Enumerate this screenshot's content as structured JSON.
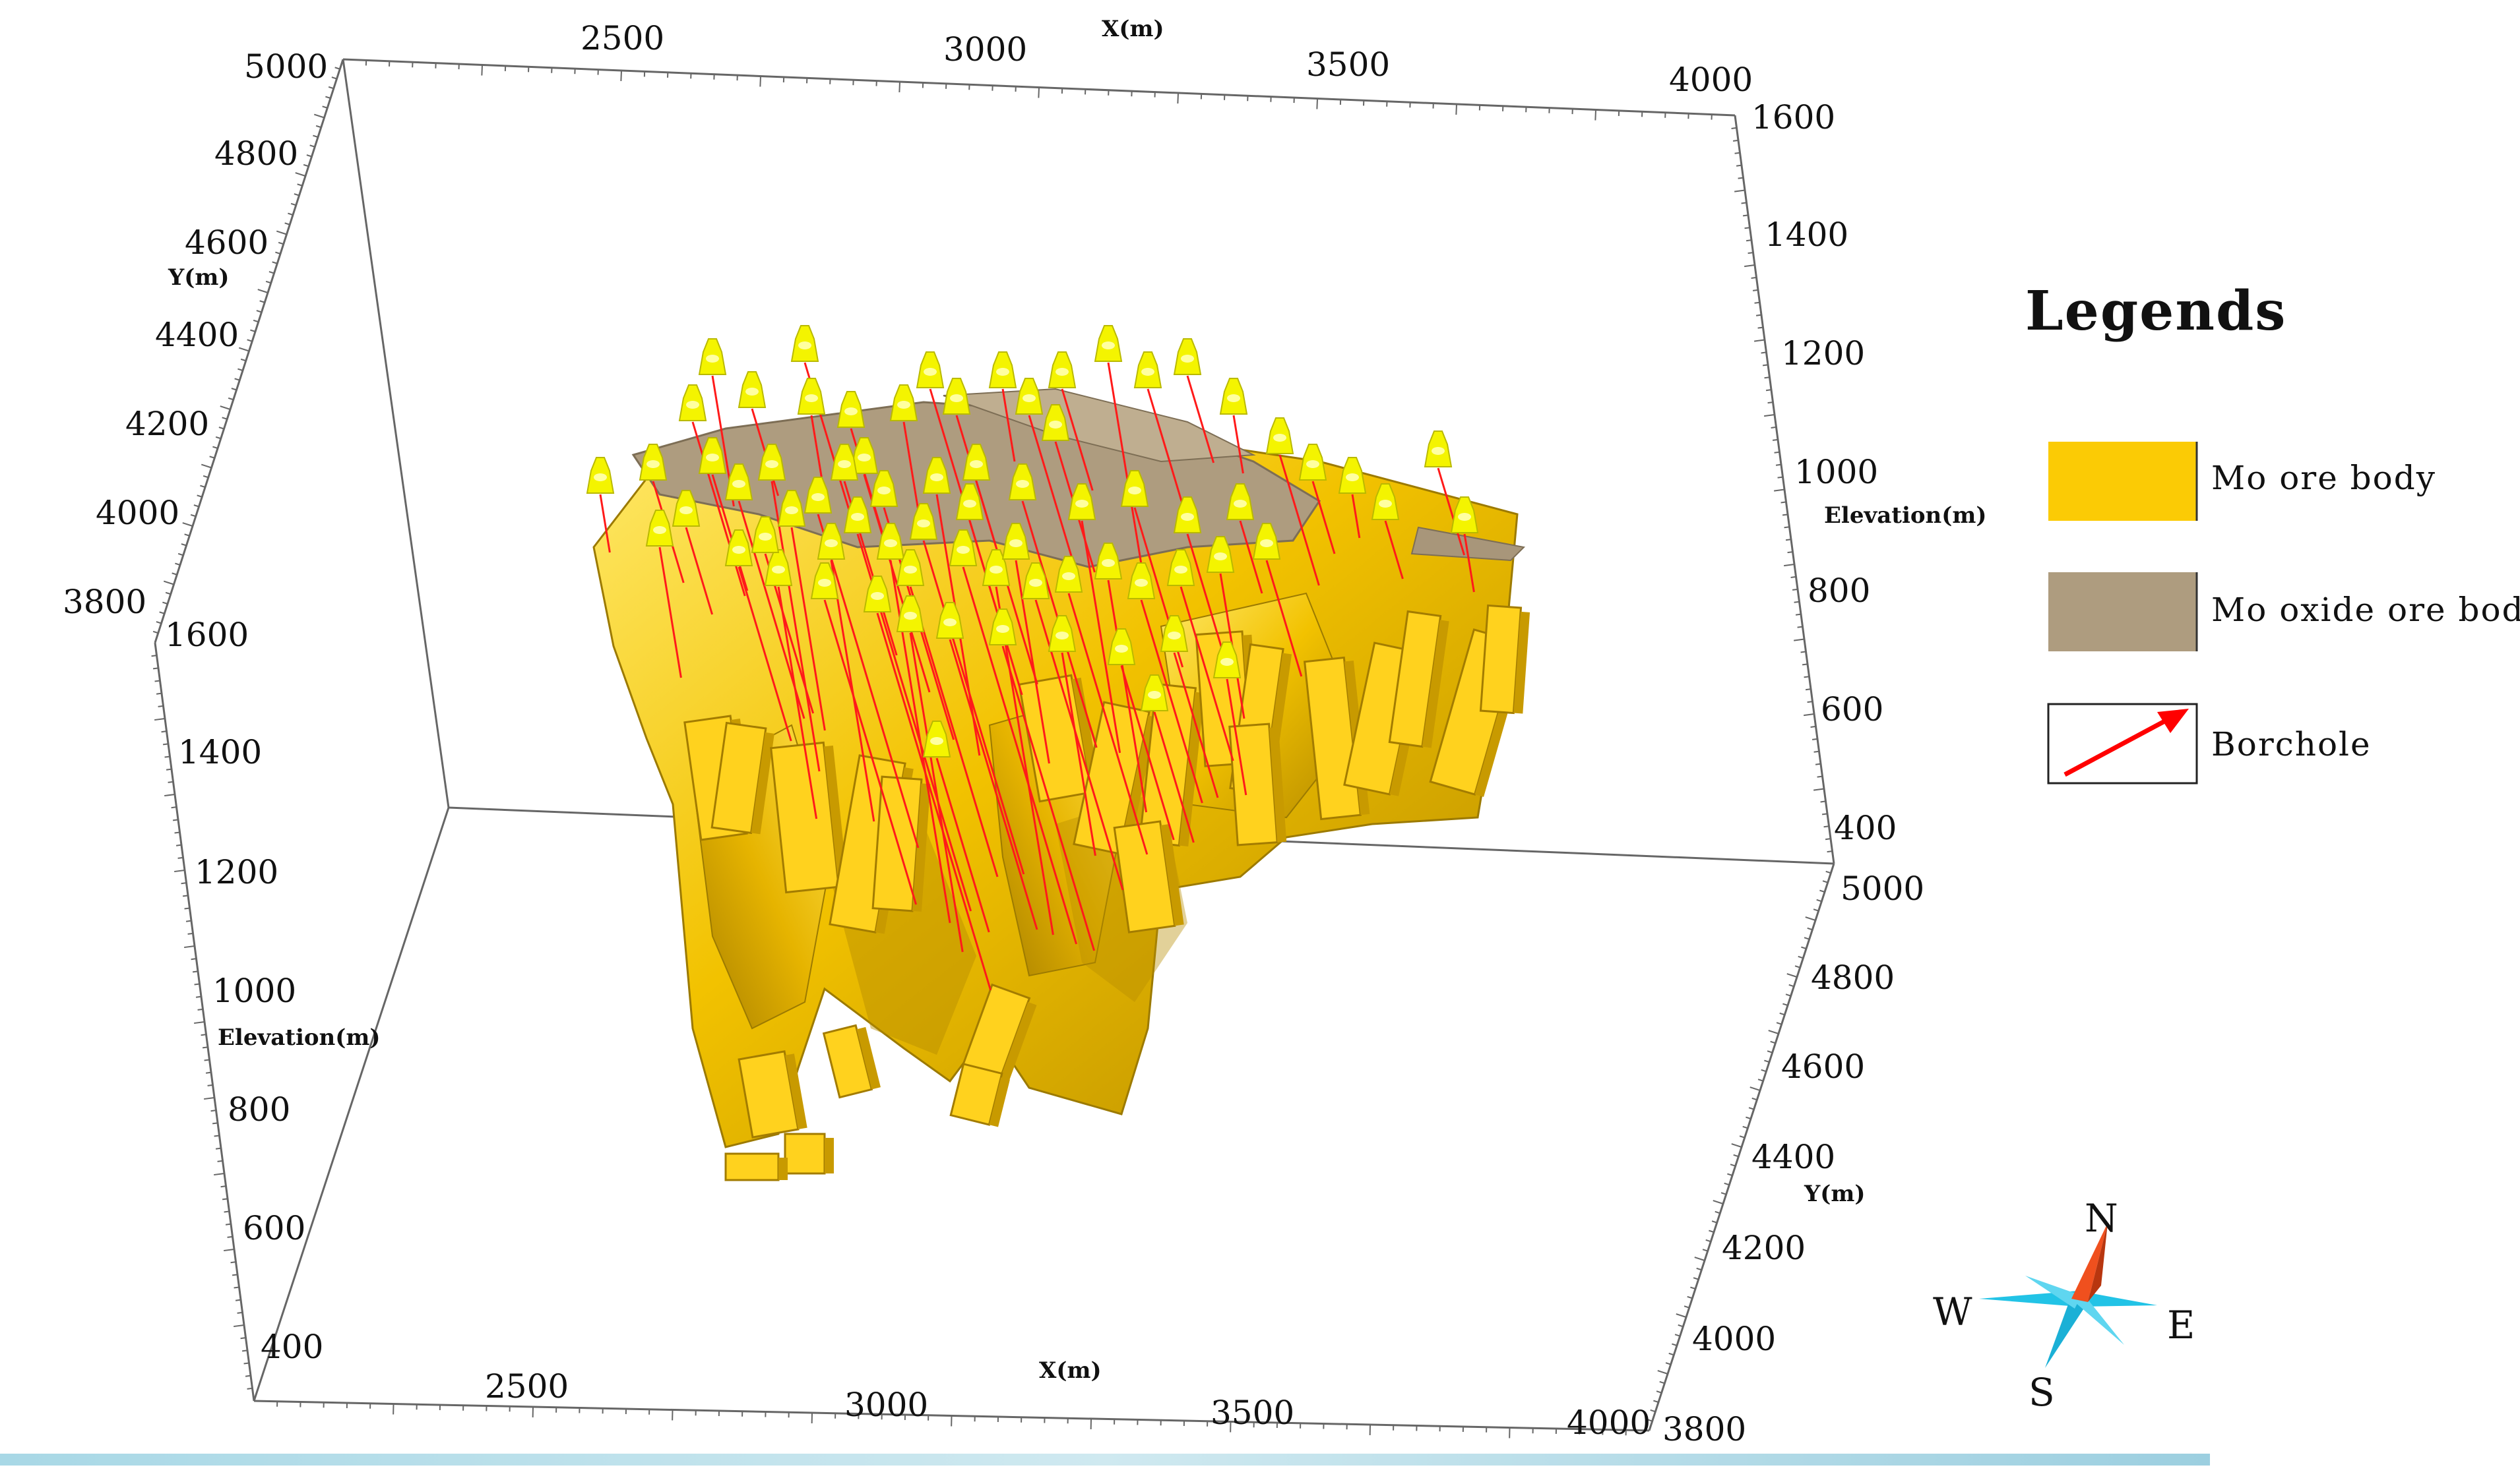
{
  "axes": {
    "x_label": "X(m)",
    "y_label": "Y(m)",
    "z_label": "Elevation(m)",
    "x_ticks": [
      "2500",
      "3000",
      "3500",
      "4000"
    ],
    "y_ticks": [
      "5000",
      "4800",
      "4600",
      "4400",
      "4200",
      "4000",
      "3800"
    ],
    "z_ticks": [
      "1600",
      "1400",
      "1200",
      "1000",
      "800",
      "600",
      "400"
    ]
  },
  "legend": {
    "title": "Legends",
    "items": [
      {
        "label": "Mo ore body",
        "color": "#FBCB05"
      },
      {
        "label": "Mo oxide ore body",
        "color": "#AE9C7F"
      },
      {
        "label": "Borchole",
        "color": "#FF0000"
      }
    ]
  },
  "compass": {
    "north": "N",
    "south": "S",
    "east": "E",
    "west": "W"
  },
  "colors": {
    "ore": "#F2C200",
    "ore_light": "#FFE34A",
    "ore_dark": "#B38900",
    "oxide": "#AE9C7F",
    "drill_marker": "#F4F400",
    "borehole": "#FF1A1A",
    "frame": "#555555",
    "compass_blue": "#22C3E6",
    "compass_red": "#F0501E"
  }
}
